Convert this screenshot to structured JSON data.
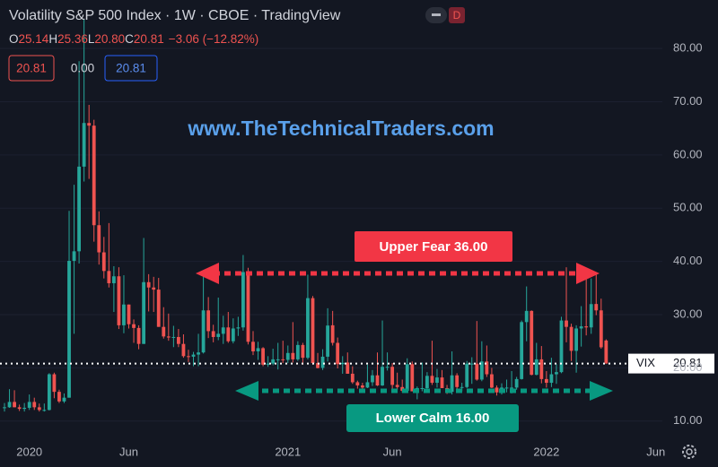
{
  "header": {
    "title": "Volatility S&P 500 Index · 1W · CBOE · TradingView",
    "ohlc_legend": [
      {
        "label": "O",
        "value": "25.14"
      },
      {
        "label": "H",
        "value": "25.36"
      },
      {
        "label": "L",
        "value": "20.80"
      },
      {
        "label": "C",
        "value": "20.81"
      }
    ],
    "change": "−3.06 (−12.82%)",
    "badges": [
      "20.81",
      "0.00",
      "20.81"
    ]
  },
  "chart_data": {
    "type": "candlestick",
    "watermark": "www.TheTechnicalTraders.com",
    "annotations": [
      "Upper Fear 36.00",
      "Lower Calm 16.00"
    ],
    "up_color": "#26a69a",
    "down_color": "#ef5350",
    "grid": true,
    "price_line": {
      "label": "VIX",
      "value": 20.81
    },
    "ylim": [
      6.6,
      89.1
    ],
    "yticks": [
      {
        "value": 10,
        "label": "10.00"
      },
      {
        "value": 20,
        "label": "20.00"
      },
      {
        "value": 30,
        "label": "30.00"
      },
      {
        "value": 40,
        "label": "40.00"
      },
      {
        "value": 50,
        "label": "50.00"
      },
      {
        "value": 60,
        "label": "60.00"
      },
      {
        "value": 70,
        "label": "70.00"
      },
      {
        "value": 80,
        "label": "80.00"
      }
    ],
    "categories": [
      null,
      null,
      null,
      null,
      null,
      "2020",
      null,
      null,
      null,
      null,
      null,
      null,
      null,
      null,
      null,
      null,
      null,
      null,
      null,
      null,
      null,
      null,
      null,
      null,
      null,
      "Jun",
      null,
      null,
      null,
      null,
      null,
      null,
      null,
      null,
      null,
      null,
      null,
      null,
      null,
      null,
      null,
      null,
      null,
      null,
      null,
      null,
      null,
      null,
      null,
      null,
      null,
      null,
      null,
      null,
      null,
      null,
      null,
      "2021",
      null,
      null,
      null,
      null,
      null,
      null,
      null,
      null,
      null,
      null,
      null,
      null,
      null,
      null,
      null,
      null,
      null,
      null,
      null,
      null,
      "Jun",
      null,
      null,
      null,
      null,
      null,
      null,
      null,
      null,
      null,
      null,
      null,
      null,
      null,
      null,
      null,
      null,
      null,
      null,
      null,
      null,
      null,
      null,
      null,
      null,
      null,
      null,
      null,
      null,
      null,
      null,
      "2022",
      null,
      null,
      null,
      null,
      null,
      null,
      null,
      null,
      null,
      null,
      null,
      null,
      null,
      null,
      null,
      null,
      null,
      null,
      null,
      null,
      null,
      "Jun"
    ],
    "ohlc": [
      [
        12.5,
        13.4,
        11.8,
        12.6
      ],
      [
        12.6,
        16.0,
        12.5,
        13.6
      ],
      [
        13.6,
        15.8,
        12.6,
        12.6
      ],
      [
        12.6,
        13.1,
        11.9,
        12.3
      ],
      [
        12.3,
        13.4,
        11.8,
        12.5
      ],
      [
        12.5,
        15.0,
        12.1,
        13.6
      ],
      [
        13.6,
        14.4,
        12.1,
        12.6
      ],
      [
        12.6,
        13.3,
        11.8,
        12.1
      ],
      [
        12.1,
        13.3,
        11.8,
        12.1
      ],
      [
        12.1,
        19.0,
        12.0,
        18.8
      ],
      [
        18.8,
        19.1,
        14.3,
        15.5
      ],
      [
        15.5,
        15.9,
        13.4,
        13.7
      ],
      [
        13.7,
        15.2,
        13.4,
        14.4
      ],
      [
        14.4,
        49.5,
        14.4,
        40.1
      ],
      [
        40.1,
        54.4,
        26.4,
        41.9
      ],
      [
        41.9,
        77.6,
        39.6,
        57.8
      ],
      [
        57.8,
        85.5,
        55.0,
        66.0
      ],
      [
        66.0,
        69.4,
        55.5,
        65.5
      ],
      [
        65.5,
        66.6,
        43.7,
        46.8
      ],
      [
        46.8,
        49.4,
        39.4,
        41.7
      ],
      [
        41.7,
        44.6,
        36.8,
        38.2
      ],
      [
        38.2,
        47.2,
        35.1,
        35.9
      ],
      [
        35.9,
        39.1,
        30.5,
        37.2
      ],
      [
        37.2,
        38.9,
        27.3,
        28.0
      ],
      [
        28.0,
        37.4,
        26.5,
        31.9
      ],
      [
        31.9,
        31.9,
        27.4,
        28.2
      ],
      [
        28.2,
        29.1,
        24.7,
        27.5
      ],
      [
        27.5,
        28.0,
        23.5,
        24.5
      ],
      [
        24.5,
        44.4,
        24.5,
        36.1
      ],
      [
        36.1,
        37.6,
        30.6,
        35.1
      ],
      [
        35.1,
        37.1,
        30.5,
        34.7
      ],
      [
        34.7,
        36.9,
        27.7,
        27.7
      ],
      [
        27.7,
        31.4,
        25.5,
        25.9
      ],
      [
        25.9,
        30.2,
        25.1,
        25.7
      ],
      [
        25.7,
        27.9,
        23.9,
        25.8
      ],
      [
        25.8,
        27.3,
        23.9,
        24.5
      ],
      [
        24.5,
        26.3,
        21.9,
        22.2
      ],
      [
        22.2,
        23.4,
        21.1,
        22.1
      ],
      [
        22.1,
        23.0,
        20.3,
        22.5
      ],
      [
        22.5,
        26.4,
        20.3,
        22.9
      ],
      [
        22.9,
        38.3,
        22.7,
        30.8
      ],
      [
        30.8,
        33.3,
        25.6,
        26.9
      ],
      [
        26.9,
        28.1,
        24.8,
        25.8
      ],
      [
        25.8,
        33.2,
        25.2,
        26.4
      ],
      [
        26.4,
        29.8,
        24.5,
        27.6
      ],
      [
        27.6,
        30.5,
        24.7,
        25.0
      ],
      [
        25.0,
        29.3,
        24.6,
        27.4
      ],
      [
        27.4,
        29.6,
        26.0,
        27.6
      ],
      [
        27.6,
        41.2,
        27.0,
        38.0
      ],
      [
        38.0,
        38.8,
        24.4,
        24.9
      ],
      [
        24.9,
        26.9,
        22.4,
        23.1
      ],
      [
        23.1,
        24.9,
        21.5,
        23.7
      ],
      [
        23.7,
        23.9,
        20.3,
        20.6
      ],
      [
        20.6,
        22.2,
        20.2,
        20.8
      ],
      [
        20.8,
        23.6,
        20.5,
        21.6
      ],
      [
        21.6,
        24.7,
        19.7,
        21.6
      ],
      [
        21.6,
        25.1,
        20.9,
        21.5
      ],
      [
        21.5,
        24.2,
        20.9,
        22.8
      ],
      [
        22.8,
        28.6,
        21.0,
        21.6
      ],
      [
        21.6,
        25.0,
        21.3,
        24.3
      ],
      [
        24.3,
        24.7,
        20.6,
        21.9
      ],
      [
        21.9,
        37.5,
        21.6,
        33.1
      ],
      [
        33.1,
        33.5,
        20.6,
        20.9
      ],
      [
        20.9,
        22.8,
        19.9,
        19.97
      ],
      [
        20.0,
        23.5,
        19.6,
        22.1
      ],
      [
        22.1,
        31.2,
        21.2,
        27.95
      ],
      [
        28.0,
        30.7,
        24.2,
        24.7
      ],
      [
        24.7,
        25.7,
        19.9,
        20.7
      ],
      [
        20.7,
        22.2,
        18.9,
        20.95
      ],
      [
        21.0,
        22.9,
        18.9,
        18.9
      ],
      [
        18.9,
        20.3,
        17.0,
        17.3
      ],
      [
        17.3,
        17.6,
        16.1,
        16.7
      ],
      [
        16.7,
        17.2,
        16.0,
        16.3
      ],
      [
        16.3,
        20.6,
        16.2,
        17.3
      ],
      [
        17.3,
        19.6,
        16.6,
        18.6
      ],
      [
        18.6,
        22.9,
        16.6,
        16.7
      ],
      [
        16.7,
        28.9,
        16.6,
        20.2
      ],
      [
        20.2,
        22.9,
        19.5,
        20.2
      ],
      [
        20.2,
        20.9,
        16.0,
        16.8
      ],
      [
        16.8,
        19.1,
        15.9,
        16.4
      ],
      [
        16.4,
        17.8,
        15.4,
        15.7
      ],
      [
        15.7,
        21.8,
        15.6,
        20.7
      ],
      [
        20.7,
        21.2,
        15.6,
        15.6
      ],
      [
        15.6,
        16.5,
        14.1,
        16.2
      ],
      [
        16.2,
        21.0,
        15.6,
        16.2
      ],
      [
        16.2,
        19.2,
        15.7,
        18.5
      ],
      [
        18.5,
        25.1,
        16.8,
        17.2
      ],
      [
        17.2,
        19.8,
        16.3,
        18.2
      ],
      [
        18.2,
        19.6,
        16.2,
        16.2
      ],
      [
        16.2,
        16.8,
        15.1,
        15.5
      ],
      [
        15.5,
        23.1,
        15.0,
        18.6
      ],
      [
        18.6,
        19.0,
        16.0,
        16.4
      ],
      [
        16.4,
        17.2,
        15.6,
        16.4
      ],
      [
        16.4,
        21.3,
        16.2,
        20.8
      ],
      [
        20.8,
        22.0,
        17.0,
        20.8
      ],
      [
        20.8,
        28.8,
        17.6,
        17.8
      ],
      [
        17.8,
        25.0,
        17.5,
        21.2
      ],
      [
        21.2,
        24.2,
        18.3,
        18.8
      ],
      [
        18.8,
        20.0,
        16.2,
        16.3
      ],
      [
        16.3,
        16.7,
        14.8,
        15.4
      ],
      [
        15.4,
        17.1,
        15.0,
        16.3
      ],
      [
        16.3,
        17.8,
        15.4,
        16.3
      ],
      [
        16.3,
        19.4,
        15.2,
        16.3
      ],
      [
        16.3,
        18.3,
        15.9,
        17.9
      ],
      [
        17.9,
        28.9,
        17.8,
        28.6
      ],
      [
        28.6,
        35.3,
        25.0,
        30.7
      ],
      [
        30.7,
        30.8,
        18.6,
        18.7
      ],
      [
        18.7,
        24.7,
        18.6,
        21.6
      ],
      [
        21.6,
        24.1,
        17.1,
        17.9
      ],
      [
        17.9,
        19.4,
        16.3,
        17.2
      ],
      [
        17.2,
        21.9,
        16.4,
        18.8
      ],
      [
        18.8,
        20.7,
        17.0,
        19.2
      ],
      [
        19.2,
        29.6,
        19.0,
        28.9
      ],
      [
        28.9,
        38.9,
        24.8,
        27.7
      ],
      [
        27.7,
        28.3,
        21.3,
        23.2
      ],
      [
        23.2,
        28.0,
        19.1,
        27.4
      ],
      [
        27.4,
        31.6,
        24.0,
        27.8
      ],
      [
        27.8,
        37.8,
        26.1,
        27.6
      ],
      [
        27.6,
        36.8,
        26.4,
        31.98
      ],
      [
        32.0,
        37.5,
        29.9,
        30.8
      ],
      [
        30.8,
        33.0,
        23.6,
        23.87
      ],
      [
        25.14,
        25.36,
        20.8,
        20.81
      ],
      null,
      null,
      null,
      null,
      null,
      null,
      null,
      null,
      null,
      null
    ]
  }
}
